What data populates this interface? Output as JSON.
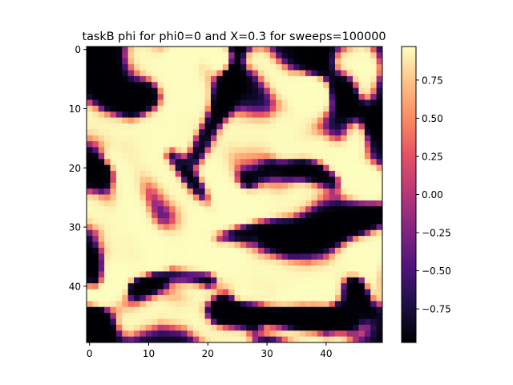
{
  "chart_data": {
    "type": "heatmap",
    "title": "taskB phi for phi0=0 and X=0.3 for sweeps=100000",
    "xlabel": "",
    "ylabel": "",
    "grid_size": [
      50,
      50
    ],
    "x_range": [
      -0.5,
      49.5
    ],
    "y_range": [
      49.5,
      -0.5
    ],
    "x_ticks": [
      0,
      10,
      20,
      30,
      40
    ],
    "x_tick_labels": [
      "0",
      "10",
      "20",
      "30",
      "40"
    ],
    "y_ticks": [
      0,
      10,
      20,
      30,
      40
    ],
    "y_tick_labels": [
      "0",
      "10",
      "20",
      "30",
      "40"
    ],
    "colormap": "magma",
    "value_range": [
      -0.97,
      0.97
    ],
    "colorbar_ticks": [
      0.75,
      0.5,
      0.25,
      0.0,
      -0.25,
      -0.5,
      -0.75
    ],
    "colorbar_tick_labels": [
      "0.75",
      "0.50",
      "0.25",
      "0.00",
      "−0.25",
      "−0.50",
      "−0.75"
    ],
    "colorbar_position": "right",
    "grid": false,
    "pattern": "approximate labyrinthine domain pattern; cell values estimated from the image",
    "high_domains": [
      {
        "points": [
          [
            9,
            1
          ],
          [
            12,
            4
          ],
          [
            13,
            8
          ],
          [
            14,
            13
          ],
          [
            16,
            17
          ],
          [
            20,
            19
          ],
          [
            23,
            23
          ],
          [
            26,
            27
          ]
        ],
        "w": 2.8
      },
      {
        "points": [
          [
            0,
            12
          ],
          [
            4,
            13
          ],
          [
            8,
            14
          ],
          [
            10,
            18
          ],
          [
            14,
            22
          ],
          [
            17,
            25
          ],
          [
            20,
            30
          ],
          [
            22,
            34
          ]
        ],
        "w": 3.0
      },
      {
        "points": [
          [
            4,
            19
          ],
          [
            6,
            23
          ],
          [
            8,
            28
          ],
          [
            10,
            32
          ]
        ],
        "w": 1.8
      },
      {
        "points": [
          [
            17,
            5
          ],
          [
            19,
            9
          ],
          [
            21,
            13
          ],
          [
            26,
            14
          ],
          [
            31,
            14
          ],
          [
            35,
            12
          ],
          [
            38,
            8
          ]
        ],
        "w": 2.8
      },
      {
        "points": [
          [
            24,
            1
          ],
          [
            29,
            2
          ],
          [
            33,
            6
          ],
          [
            38,
            7
          ],
          [
            42,
            3
          ],
          [
            46,
            1
          ]
        ],
        "w": 2.0
      },
      {
        "points": [
          [
            15,
            1
          ],
          [
            20,
            0
          ],
          [
            22,
            2
          ]
        ],
        "w": 1.5
      },
      {
        "points": [
          [
            47,
            4
          ],
          [
            46,
            10
          ],
          [
            45,
            16
          ]
        ],
        "w": 1.6
      },
      {
        "points": [
          [
            29,
            21
          ],
          [
            34,
            18
          ],
          [
            39,
            17
          ],
          [
            43,
            19
          ],
          [
            47,
            22
          ]
        ],
        "w": 2.0
      },
      {
        "points": [
          [
            22,
            27
          ],
          [
            28,
            28
          ],
          [
            33,
            26
          ],
          [
            38,
            23
          ],
          [
            42,
            22
          ],
          [
            48,
            24
          ]
        ],
        "w": 2.4
      },
      {
        "points": [
          [
            0,
            27
          ],
          [
            4,
            29
          ],
          [
            5,
            34
          ],
          [
            3,
            38
          ],
          [
            0,
            40
          ]
        ],
        "w": 2.6
      },
      {
        "points": [
          [
            14,
            34
          ],
          [
            20,
            35
          ],
          [
            26,
            37
          ],
          [
            32,
            38
          ],
          [
            37,
            39
          ],
          [
            41,
            38
          ],
          [
            45,
            34
          ],
          [
            49,
            32
          ]
        ],
        "w": 2.8
      },
      {
        "points": [
          [
            2,
            42
          ],
          [
            6,
            39
          ],
          [
            11,
            37
          ],
          [
            16,
            39
          ],
          [
            20,
            41
          ]
        ],
        "w": 1.8
      },
      {
        "points": [
          [
            7,
            46
          ],
          [
            12,
            44
          ],
          [
            17,
            45
          ],
          [
            21,
            48
          ],
          [
            25,
            49
          ]
        ],
        "w": 2.2
      },
      {
        "points": [
          [
            26,
            42
          ],
          [
            31,
            43
          ],
          [
            36,
            42
          ],
          [
            40,
            42
          ]
        ],
        "w": 1.6
      },
      {
        "points": [
          [
            47,
            36
          ],
          [
            48,
            42
          ],
          [
            45,
            47
          ],
          [
            42,
            49
          ]
        ],
        "w": 1.8
      },
      {
        "points": [
          [
            30,
            47
          ],
          [
            34,
            48
          ],
          [
            38,
            49
          ]
        ],
        "w": 1.2
      }
    ],
    "low_domains": [
      {
        "points": [
          [
            2,
            0
          ],
          [
            2,
            5
          ],
          [
            4,
            8
          ],
          [
            7,
            9
          ],
          [
            10,
            8
          ]
        ],
        "w": 1.8
      },
      {
        "points": [
          [
            0,
            20
          ],
          [
            2,
            21
          ]
        ],
        "w": 1.5
      },
      {
        "points": [
          [
            14,
            18
          ],
          [
            18,
            23
          ],
          [
            21,
            27
          ]
        ],
        "w": 1.2
      },
      {
        "points": [
          [
            25,
            0
          ],
          [
            24,
            5
          ],
          [
            22,
            10
          ],
          [
            20,
            14
          ],
          [
            18,
            18
          ]
        ],
        "w": 1.3
      },
      {
        "points": [
          [
            38,
            1
          ],
          [
            40,
            4
          ],
          [
            44,
            9
          ],
          [
            48,
            12
          ]
        ],
        "w": 1.6
      },
      {
        "points": [
          [
            27,
            22
          ],
          [
            31,
            20
          ],
          [
            36,
            20
          ],
          [
            41,
            22
          ]
        ],
        "w": 1.4
      },
      {
        "points": [
          [
            22,
            32
          ],
          [
            28,
            30
          ],
          [
            34,
            32
          ],
          [
            40,
            31
          ],
          [
            48,
            28
          ]
        ],
        "w": 1.6
      },
      {
        "points": [
          [
            8,
            40
          ],
          [
            14,
            38
          ],
          [
            20,
            39
          ]
        ],
        "w": 1.2
      },
      {
        "points": [
          [
            22,
            44
          ],
          [
            30,
            45
          ],
          [
            38,
            45
          ],
          [
            44,
            46
          ]
        ],
        "w": 1.6
      },
      {
        "points": [
          [
            0,
            36
          ],
          [
            1,
            39
          ]
        ],
        "w": 1.4
      },
      {
        "points": [
          [
            45,
            40
          ],
          [
            47,
            44
          ]
        ],
        "w": 1.3
      },
      {
        "points": [
          [
            1,
            45
          ],
          [
            2,
            48
          ]
        ],
        "w": 1.4
      }
    ]
  }
}
